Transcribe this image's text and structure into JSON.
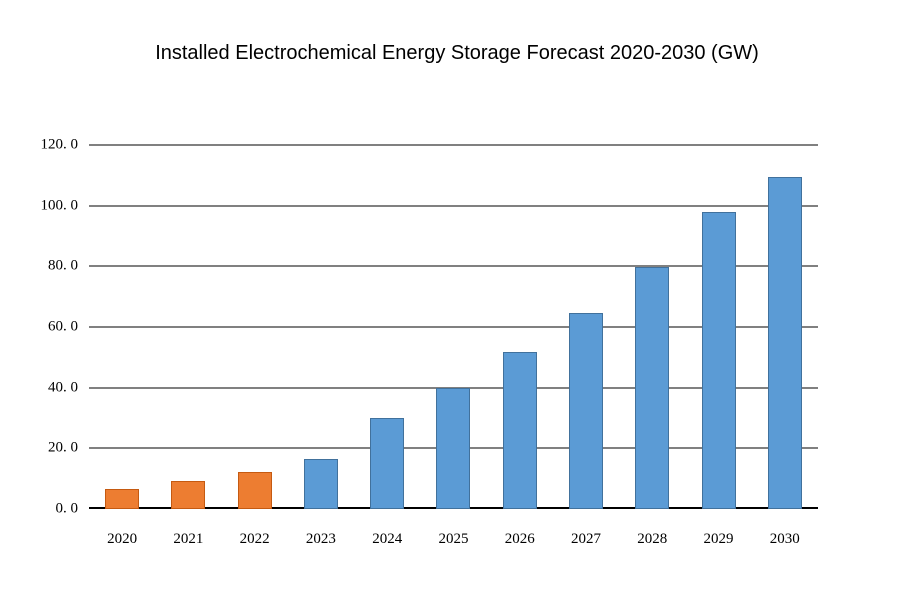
{
  "chart_data": {
    "type": "bar",
    "title": "Installed Electrochemical Energy Storage Forecast 2020-2030 (GW)",
    "xlabel": "",
    "ylabel": "",
    "categories": [
      "2020",
      "2021",
      "2022",
      "2023",
      "2024",
      "2025",
      "2026",
      "2027",
      "2028",
      "2029",
      "2030"
    ],
    "values": [
      6.7,
      9.4,
      12.3,
      16.4,
      29.9,
      39.8,
      51.8,
      64.7,
      79.9,
      97.9,
      109.3
    ],
    "bar_color_keys": [
      "orange",
      "orange",
      "orange",
      "blue",
      "blue",
      "blue",
      "blue",
      "blue",
      "blue",
      "blue",
      "blue"
    ],
    "ylim": [
      0,
      120
    ],
    "y_ticks": [
      {
        "value": 0,
        "label": "0. 0"
      },
      {
        "value": 20,
        "label": "20. 0"
      },
      {
        "value": 40,
        "label": "40. 0"
      },
      {
        "value": 60,
        "label": "60. 0"
      },
      {
        "value": 80,
        "label": "80. 0"
      },
      {
        "value": 100,
        "label": "100. 0"
      },
      {
        "value": 120,
        "label": "120. 0"
      }
    ],
    "grid": true,
    "legend_position": "none",
    "colors": {
      "orange_fill": "#ED7D31",
      "orange_border": "#C55A11",
      "blue_fill": "#5B9BD5",
      "blue_border": "#41719C",
      "gridline": "#000000",
      "axis_line": "#000000",
      "background": "#FFFFFF",
      "text": "#000000"
    }
  }
}
